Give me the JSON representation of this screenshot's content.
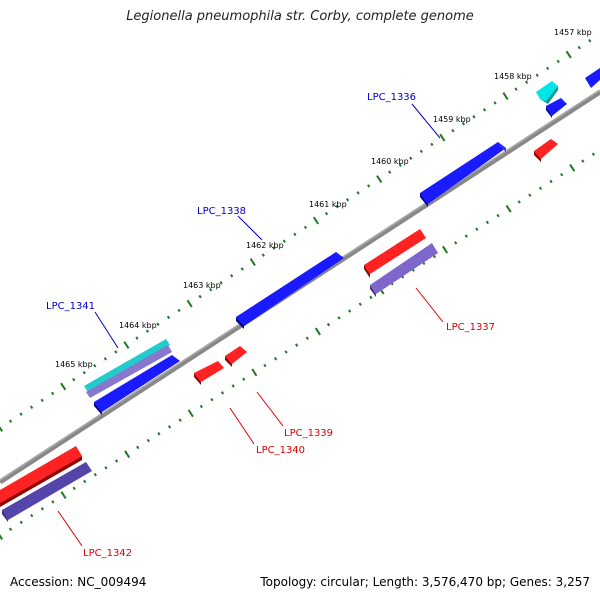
{
  "title": "Legionella pneumophila str. Corby, complete genome",
  "accession": "Accession: NC_009494",
  "summary": "Topology: circular; Length: 3,576,470 bp; Genes: 3,257",
  "ruler_labels": [
    "1457 kbp",
    "1458 kbp",
    "1459 kbp",
    "1460 kbp",
    "1461 kbp",
    "1462 kbp",
    "1463 kbp",
    "1464 kbp",
    "1465 kbp"
  ],
  "genes": [
    {
      "name": "LPC_1336",
      "color": "#0000cc"
    },
    {
      "name": "LPC_1337",
      "color": "#dd0000"
    },
    {
      "name": "LPC_1338",
      "color": "#0000cc"
    },
    {
      "name": "LPC_1339",
      "color": "#dd0000"
    },
    {
      "name": "LPC_1340",
      "color": "#dd0000"
    },
    {
      "name": "LPC_1341",
      "color": "#0000cc"
    },
    {
      "name": "LPC_1342",
      "color": "#dd0000"
    }
  ],
  "colors": {
    "backbone": "#888888",
    "forward_cds": "#0000ee",
    "reverse_cds": "#ee0000",
    "forward_gene": "#00cccc",
    "reverse_gene": "#7f66cc",
    "ruler_ticks": "#227722"
  }
}
